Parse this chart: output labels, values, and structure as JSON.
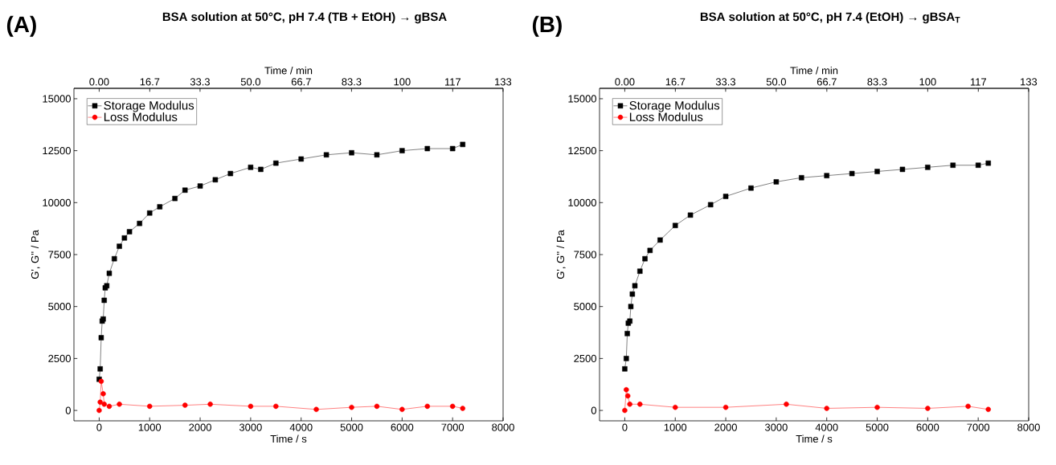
{
  "chart_data": [
    {
      "type": "line",
      "title": "BSA solution at 50°C, pH 7.4 (TB + EtOH) → gBSA",
      "annotations": [
        "(A)"
      ],
      "xlabel": "Time / s",
      "ylabel": "G', G'' / Pa",
      "x2label": "Time / min",
      "xlim": [
        -500,
        8000
      ],
      "xticks": [
        0,
        1000,
        2000,
        3000,
        4000,
        5000,
        6000,
        7000,
        8000
      ],
      "x2lim": [
        -8.33,
        133.33
      ],
      "x2ticks": [
        {
          "value": 0,
          "label": "0.00"
        },
        16.7,
        33.3,
        {
          "value": 50,
          "label": "50.0"
        },
        66.7,
        83.3,
        100,
        {
          "value": 116.7,
          "label": "117"
        },
        {
          "value": 133.3,
          "label": "133"
        }
      ],
      "ylim": [
        -500,
        15500
      ],
      "yticks": [
        0,
        2500,
        5000,
        7500,
        10000,
        12500,
        15000
      ],
      "grid": false,
      "legend": "top left",
      "line_style": "solid",
      "series": [
        {
          "name": "Storage Modulus",
          "color": "#000000",
          "marker": "square",
          "x": [
            0,
            20,
            40,
            60,
            80,
            100,
            120,
            150,
            200,
            300,
            400,
            500,
            600,
            800,
            1000,
            1200,
            1500,
            1700,
            2000,
            2300,
            2600,
            3000,
            3200,
            3500,
            4000,
            4500,
            5000,
            5500,
            6000,
            6500,
            7000,
            7200
          ],
          "values": [
            1500,
            2000,
            3500,
            4300,
            4400,
            5300,
            5900,
            6000,
            6600,
            7300,
            7900,
            8300,
            8600,
            9000,
            9500,
            9800,
            10200,
            10600,
            10800,
            11100,
            11400,
            11700,
            11600,
            11900,
            12100,
            12300,
            12400,
            12300,
            12500,
            12600,
            12600,
            12800
          ]
        },
        {
          "name": "Loss Modulus",
          "color": "#ff0000",
          "marker": "circle",
          "x": [
            0,
            20,
            40,
            80,
            100,
            200,
            400,
            1000,
            1700,
            2200,
            3000,
            3500,
            4300,
            5000,
            5500,
            6000,
            6500,
            7000,
            7200
          ],
          "values": [
            0,
            400,
            1400,
            800,
            300,
            200,
            300,
            200,
            250,
            300,
            200,
            200,
            50,
            150,
            200,
            50,
            200,
            200,
            100
          ]
        }
      ]
    },
    {
      "type": "line",
      "title": "BSA solution at 50°C, pH 7.4 (EtOH) → gBSA$_{T}$",
      "annotations": [
        "(B)"
      ],
      "xlabel": "Time / s",
      "ylabel": "G', G'' / Pa",
      "x2label": "Time / min",
      "xlim": [
        -500,
        8000
      ],
      "xticks": [
        0,
        1000,
        2000,
        3000,
        4000,
        5000,
        6000,
        7000,
        8000
      ],
      "x2lim": [
        -8.33,
        133.33
      ],
      "x2ticks": [
        {
          "value": 0,
          "label": "0.00"
        },
        16.7,
        33.3,
        {
          "value": 50,
          "label": "50.0"
        },
        66.7,
        83.3,
        100,
        {
          "value": 116.7,
          "label": "117"
        },
        {
          "value": 133.3,
          "label": "133"
        }
      ],
      "ylim": [
        -500,
        15500
      ],
      "yticks": [
        0,
        2500,
        5000,
        7500,
        10000,
        12500,
        15000
      ],
      "grid": false,
      "legend": "top left",
      "line_style": "solid",
      "series": [
        {
          "name": "Storage Modulus",
          "color": "#000000",
          "marker": "square",
          "x": [
            0,
            30,
            50,
            70,
            100,
            120,
            150,
            200,
            300,
            400,
            500,
            700,
            1000,
            1300,
            1700,
            2000,
            2500,
            3000,
            3500,
            4000,
            4500,
            5000,
            5500,
            6000,
            6500,
            7000,
            7200
          ],
          "values": [
            2000,
            2500,
            3700,
            4200,
            4300,
            5000,
            5600,
            6000,
            6700,
            7300,
            7700,
            8200,
            8900,
            9400,
            9900,
            10300,
            10700,
            11000,
            11200,
            11300,
            11400,
            11500,
            11600,
            11700,
            11800,
            11800,
            11900
          ]
        },
        {
          "name": "Loss Modulus",
          "color": "#ff0000",
          "marker": "circle",
          "x": [
            0,
            30,
            60,
            100,
            300,
            1000,
            2000,
            3200,
            4000,
            5000,
            6000,
            6800,
            7200
          ],
          "values": [
            0,
            1000,
            700,
            300,
            300,
            150,
            150,
            300,
            100,
            150,
            100,
            200,
            50
          ]
        }
      ]
    }
  ]
}
